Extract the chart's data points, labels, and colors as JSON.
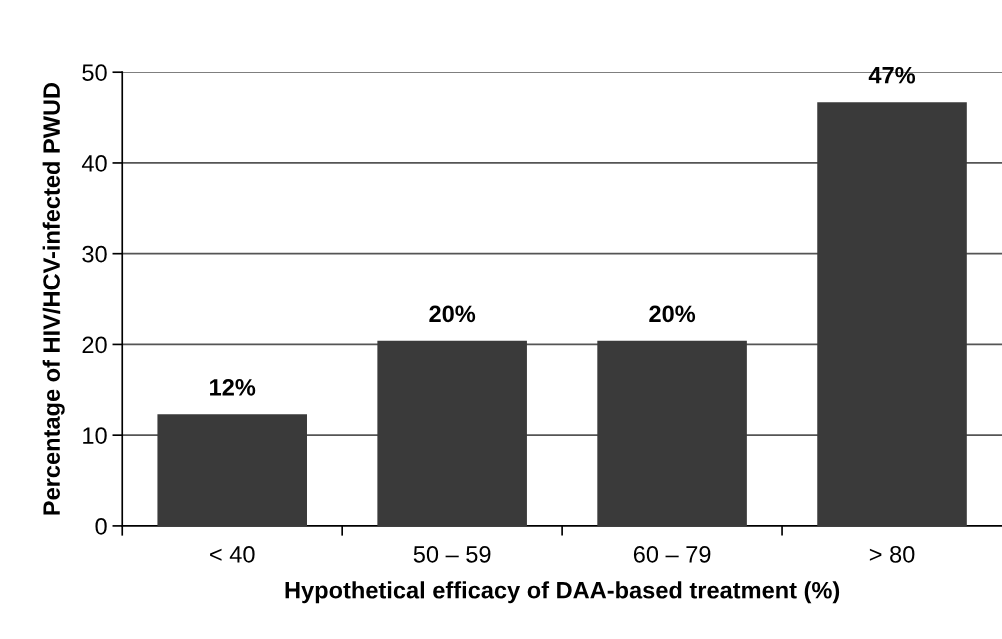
{
  "chart_data": {
    "type": "bar",
    "xlabel": "Hypothetical efficacy of DAA-based treatment (%)",
    "ylabel": "Percentage of HIV/HCV-infected PWUD",
    "categories": [
      "< 40",
      "50 – 59",
      "60 – 79",
      "> 80"
    ],
    "values": [
      12.3,
      20.4,
      20.4,
      46.7
    ],
    "value_labels": [
      "12%",
      "20%",
      "20%",
      "47%"
    ],
    "color": "#3a3a3a",
    "ylim": [
      0,
      50
    ],
    "yticks": [
      0,
      10,
      20,
      30,
      40,
      50
    ],
    "grid": "y",
    "legend": false
  }
}
